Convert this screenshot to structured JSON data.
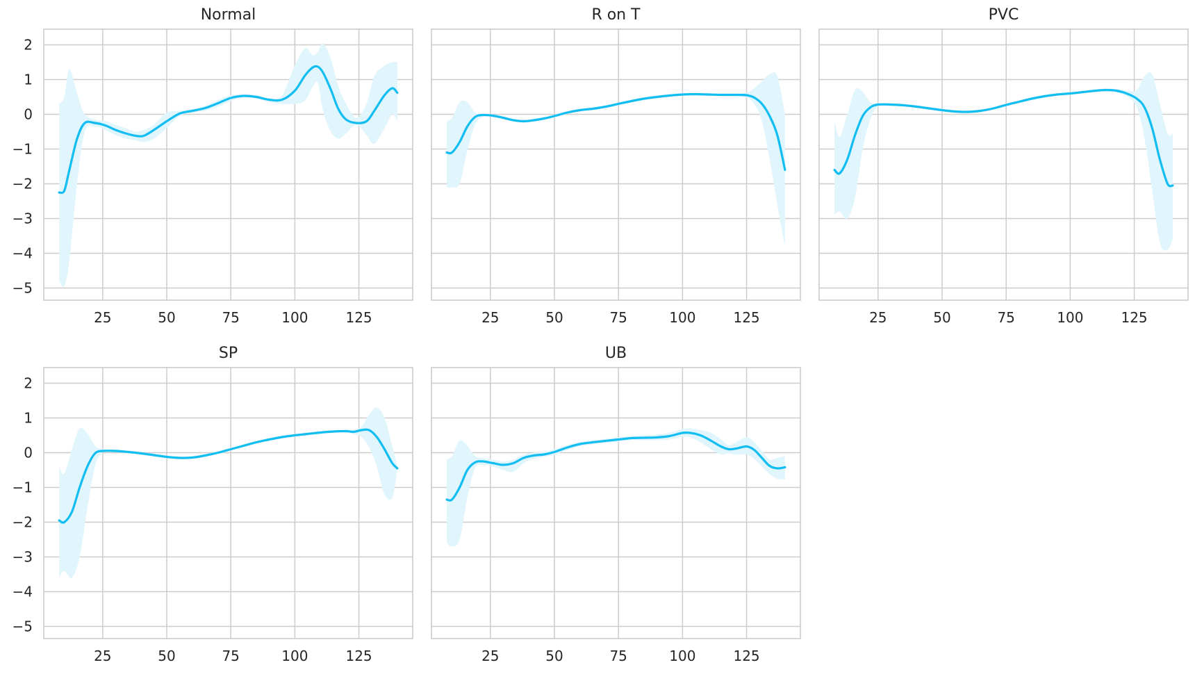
{
  "chart_data": [
    {
      "type": "line",
      "title": "Normal",
      "xlim": [
        2,
        146
      ],
      "ylim": [
        -5.35,
        2.45
      ],
      "xticks": [
        25,
        50,
        75,
        100,
        125
      ],
      "yticks": [
        2,
        1,
        0,
        -1,
        -2,
        -3,
        -4,
        -5
      ],
      "show_yticks": true,
      "grid": true,
      "series": [
        {
          "x": [
            8,
            10,
            12,
            15,
            18,
            22,
            26,
            30,
            34,
            38,
            41,
            45,
            50,
            55,
            60,
            65,
            70,
            75,
            80,
            85,
            90,
            95,
            100,
            104,
            107,
            109,
            111,
            114,
            117,
            120,
            124,
            128,
            131,
            135,
            138,
            140
          ],
          "y": [
            -2.25,
            -2.2,
            -1.6,
            -0.7,
            -0.25,
            -0.25,
            -0.32,
            -0.45,
            -0.55,
            -0.62,
            -0.62,
            -0.45,
            -0.2,
            0.02,
            0.1,
            0.18,
            0.32,
            0.47,
            0.53,
            0.5,
            0.42,
            0.42,
            0.68,
            1.12,
            1.35,
            1.37,
            1.2,
            0.72,
            0.15,
            -0.15,
            -0.25,
            -0.2,
            0.1,
            0.55,
            0.75,
            0.62
          ],
          "upper": [
            0.3,
            0.5,
            1.3,
            0.6,
            0.0,
            -0.15,
            -0.2,
            -0.3,
            -0.4,
            -0.5,
            -0.45,
            -0.3,
            0.05,
            0.1,
            0.15,
            0.25,
            0.42,
            0.55,
            0.58,
            0.55,
            0.45,
            0.55,
            1.4,
            1.9,
            1.7,
            1.8,
            2.05,
            1.6,
            0.8,
            0.3,
            -0.1,
            0.3,
            1.1,
            1.4,
            1.5,
            1.5
          ],
          "lower": [
            -4.8,
            -4.95,
            -4.2,
            -2.0,
            -0.5,
            -0.35,
            -0.45,
            -0.6,
            -0.7,
            -0.75,
            -0.8,
            -0.7,
            -0.4,
            -0.05,
            0.05,
            0.1,
            0.22,
            0.38,
            0.48,
            0.45,
            0.35,
            0.3,
            0.3,
            0.4,
            0.8,
            0.9,
            0.1,
            -0.5,
            -0.7,
            -0.55,
            -0.3,
            -0.6,
            -0.85,
            -0.4,
            0.0,
            -0.2
          ]
        }
      ]
    },
    {
      "type": "line",
      "title": "R on T",
      "xlim": [
        2,
        146
      ],
      "ylim": [
        -5.35,
        2.45
      ],
      "xticks": [
        25,
        50,
        75,
        100,
        125
      ],
      "yticks": [
        2,
        1,
        0,
        -1,
        -2,
        -3,
        -4,
        -5
      ],
      "show_yticks": false,
      "grid": true,
      "series": [
        {
          "x": [
            8,
            10,
            13,
            16,
            19,
            22,
            26,
            30,
            34,
            38,
            42,
            46,
            50,
            55,
            60,
            65,
            70,
            75,
            80,
            85,
            90,
            95,
            100,
            105,
            110,
            115,
            120,
            125,
            128,
            131,
            134,
            137,
            140
          ],
          "y": [
            -1.1,
            -1.1,
            -0.8,
            -0.35,
            -0.08,
            -0.02,
            -0.04,
            -0.1,
            -0.17,
            -0.2,
            -0.17,
            -0.12,
            -0.05,
            0.05,
            0.12,
            0.16,
            0.22,
            0.3,
            0.38,
            0.45,
            0.5,
            0.54,
            0.57,
            0.58,
            0.57,
            0.56,
            0.56,
            0.55,
            0.48,
            0.3,
            -0.05,
            -0.6,
            -1.6
          ],
          "upper": [
            -0.2,
            -0.1,
            0.35,
            0.35,
            0.05,
            0.02,
            0.0,
            -0.06,
            -0.13,
            -0.16,
            -0.13,
            -0.08,
            -0.01,
            0.09,
            0.16,
            0.2,
            0.26,
            0.34,
            0.42,
            0.49,
            0.54,
            0.58,
            0.61,
            0.62,
            0.61,
            0.6,
            0.6,
            0.62,
            0.75,
            0.95,
            1.15,
            1.1,
            0.0
          ],
          "lower": [
            -2.1,
            -2.1,
            -2.0,
            -1.05,
            -0.3,
            -0.08,
            -0.08,
            -0.14,
            -0.21,
            -0.24,
            -0.21,
            -0.16,
            -0.09,
            0.01,
            0.08,
            0.12,
            0.18,
            0.26,
            0.34,
            0.41,
            0.46,
            0.5,
            0.53,
            0.54,
            0.53,
            0.52,
            0.52,
            0.48,
            0.3,
            -0.2,
            -1.3,
            -2.6,
            -3.8
          ]
        }
      ]
    },
    {
      "type": "line",
      "title": "PVC",
      "xlim": [
        2,
        146
      ],
      "ylim": [
        -5.35,
        2.45
      ],
      "xticks": [
        25,
        50,
        75,
        100,
        125
      ],
      "yticks": [
        2,
        1,
        0,
        -1,
        -2,
        -3,
        -4,
        -5
      ],
      "show_yticks": false,
      "grid": true,
      "series": [
        {
          "x": [
            8,
            10,
            13,
            16,
            19,
            22,
            25,
            30,
            35,
            40,
            45,
            50,
            55,
            60,
            65,
            70,
            75,
            80,
            85,
            90,
            95,
            100,
            105,
            110,
            114,
            118,
            122,
            126,
            129,
            132,
            135,
            138,
            140
          ],
          "y": [
            -1.6,
            -1.7,
            -1.3,
            -0.6,
            -0.05,
            0.2,
            0.28,
            0.28,
            0.26,
            0.22,
            0.17,
            0.12,
            0.08,
            0.07,
            0.1,
            0.17,
            0.27,
            0.36,
            0.45,
            0.52,
            0.57,
            0.6,
            0.64,
            0.68,
            0.7,
            0.68,
            0.6,
            0.45,
            0.2,
            -0.4,
            -1.3,
            -2.0,
            -2.05
          ],
          "upper": [
            -0.2,
            -0.65,
            0.0,
            0.7,
            0.65,
            0.35,
            0.32,
            0.32,
            0.3,
            0.26,
            0.21,
            0.16,
            0.12,
            0.11,
            0.14,
            0.21,
            0.31,
            0.4,
            0.49,
            0.56,
            0.61,
            0.64,
            0.68,
            0.72,
            0.74,
            0.73,
            0.68,
            0.7,
            1.1,
            1.15,
            0.3,
            -0.55,
            -0.55
          ],
          "lower": [
            -2.9,
            -2.8,
            -3.0,
            -2.4,
            -1.0,
            -0.15,
            0.22,
            0.24,
            0.22,
            0.18,
            0.13,
            0.08,
            0.04,
            0.03,
            0.06,
            0.13,
            0.23,
            0.32,
            0.41,
            0.48,
            0.53,
            0.56,
            0.6,
            0.64,
            0.66,
            0.63,
            0.52,
            0.2,
            -0.7,
            -2.2,
            -3.7,
            -3.9,
            -3.6
          ]
        }
      ]
    },
    {
      "type": "line",
      "title": "SP",
      "xlim": [
        2,
        146
      ],
      "ylim": [
        -5.35,
        2.45
      ],
      "xticks": [
        25,
        50,
        75,
        100,
        125
      ],
      "yticks": [
        2,
        1,
        0,
        -1,
        -2,
        -3,
        -4,
        -5
      ],
      "show_yticks": true,
      "grid": true,
      "series": [
        {
          "x": [
            8,
            10,
            13,
            16,
            19,
            22,
            25,
            30,
            35,
            40,
            45,
            50,
            55,
            60,
            65,
            70,
            75,
            80,
            85,
            90,
            95,
            100,
            105,
            110,
            115,
            120,
            123,
            126,
            129,
            132,
            135,
            138,
            140
          ],
          "y": [
            -1.95,
            -2.0,
            -1.7,
            -1.0,
            -0.4,
            -0.02,
            0.05,
            0.05,
            0.02,
            -0.02,
            -0.07,
            -0.12,
            -0.15,
            -0.14,
            -0.08,
            0.0,
            0.1,
            0.2,
            0.3,
            0.38,
            0.45,
            0.5,
            0.54,
            0.58,
            0.61,
            0.62,
            0.6,
            0.65,
            0.65,
            0.45,
            0.1,
            -0.3,
            -0.45
          ],
          "upper": [
            -0.4,
            -0.6,
            0.1,
            0.7,
            0.55,
            0.2,
            0.1,
            0.09,
            0.06,
            0.02,
            -0.03,
            -0.08,
            -0.11,
            -0.1,
            -0.04,
            0.04,
            0.14,
            0.24,
            0.34,
            0.42,
            0.49,
            0.54,
            0.58,
            0.62,
            0.65,
            0.66,
            0.66,
            0.75,
            1.1,
            1.3,
            1.0,
            0.2,
            -0.4
          ],
          "lower": [
            -3.6,
            -3.4,
            -3.6,
            -3.0,
            -1.6,
            -0.4,
            0.0,
            0.01,
            -0.02,
            -0.06,
            -0.11,
            -0.16,
            -0.19,
            -0.18,
            -0.12,
            -0.04,
            0.06,
            0.16,
            0.26,
            0.34,
            0.41,
            0.46,
            0.5,
            0.54,
            0.57,
            0.58,
            0.54,
            0.45,
            0.15,
            -0.4,
            -1.2,
            -1.3,
            -0.5
          ]
        }
      ]
    },
    {
      "type": "line",
      "title": "UB",
      "xlim": [
        2,
        146
      ],
      "ylim": [
        -5.35,
        2.45
      ],
      "xticks": [
        25,
        50,
        75,
        100,
        125
      ],
      "yticks": [
        2,
        1,
        0,
        -1,
        -2,
        -3,
        -4,
        -5
      ],
      "show_yticks": false,
      "grid": true,
      "series": [
        {
          "x": [
            8,
            10,
            13,
            16,
            19,
            22,
            26,
            30,
            34,
            38,
            42,
            46,
            50,
            55,
            60,
            65,
            70,
            75,
            80,
            85,
            90,
            95,
            100,
            103,
            107,
            111,
            115,
            118,
            121,
            125,
            128,
            131,
            134,
            137,
            140
          ],
          "y": [
            -1.35,
            -1.35,
            -1.0,
            -0.5,
            -0.28,
            -0.25,
            -0.3,
            -0.35,
            -0.3,
            -0.15,
            -0.08,
            -0.05,
            0.02,
            0.15,
            0.25,
            0.3,
            0.34,
            0.38,
            0.42,
            0.43,
            0.44,
            0.48,
            0.57,
            0.57,
            0.5,
            0.35,
            0.18,
            0.1,
            0.12,
            0.18,
            0.08,
            -0.15,
            -0.38,
            -0.45,
            -0.42
          ],
          "upper": [
            -0.2,
            -0.1,
            0.35,
            0.2,
            -0.1,
            -0.15,
            -0.2,
            -0.25,
            -0.2,
            -0.05,
            0.0,
            0.02,
            0.1,
            0.22,
            0.31,
            0.36,
            0.4,
            0.44,
            0.48,
            0.5,
            0.52,
            0.58,
            0.68,
            0.7,
            0.65,
            0.58,
            0.38,
            0.22,
            0.3,
            0.45,
            0.3,
            0.05,
            -0.2,
            -0.15,
            -0.1
          ],
          "lower": [
            -2.6,
            -2.7,
            -2.5,
            -1.3,
            -0.45,
            -0.35,
            -0.4,
            -0.5,
            -0.55,
            -0.3,
            -0.18,
            -0.12,
            -0.06,
            0.08,
            0.19,
            0.24,
            0.28,
            0.32,
            0.36,
            0.36,
            0.36,
            0.38,
            0.46,
            0.44,
            0.3,
            0.1,
            -0.05,
            -0.02,
            -0.06,
            -0.05,
            -0.18,
            -0.4,
            -0.62,
            -0.75,
            -0.78
          ]
        }
      ]
    }
  ]
}
